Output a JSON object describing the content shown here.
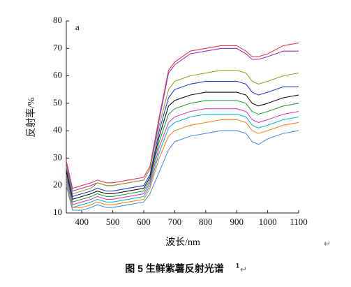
{
  "chart_data": {
    "type": "line",
    "panel_label": "a",
    "xlabel": "波长/nm",
    "ylabel": "反射率/%",
    "caption": "图 5  生鲜紫薯反射光谱",
    "caption_note": "1",
    "return_marks": [
      "↵",
      "↵"
    ],
    "xlim": [
      350,
      1100
    ],
    "ylim": [
      10,
      80
    ],
    "xticks": [
      400,
      500,
      600,
      700,
      800,
      900,
      1000,
      1100
    ],
    "yticks": [
      10,
      20,
      30,
      40,
      50,
      60,
      70,
      80
    ],
    "grid": false,
    "x": [
      350,
      370,
      400,
      430,
      450,
      480,
      500,
      550,
      600,
      620,
      650,
      680,
      700,
      750,
      800,
      850,
      900,
      930,
      950,
      970,
      1000,
      1050,
      1100
    ],
    "series": [
      {
        "color": "#e8394a",
        "values": [
          29,
          19,
          20,
          21,
          22,
          21,
          21,
          22,
          23,
          27,
          45,
          62,
          65,
          69,
          70,
          71,
          71,
          69,
          67,
          67,
          68,
          71,
          72
        ]
      },
      {
        "color": "#9b2fc9",
        "values": [
          28,
          18,
          19,
          20,
          21,
          20,
          20,
          21,
          22,
          26,
          44,
          61,
          64,
          68,
          69,
          70,
          70,
          68,
          66,
          66,
          67,
          69,
          69
        ]
      },
      {
        "color": "#9aa12c",
        "values": [
          27,
          17,
          18,
          19,
          21,
          20,
          20,
          21,
          22,
          26,
          42,
          55,
          58,
          60,
          61,
          62,
          62,
          61,
          58,
          57,
          58,
          60,
          61
        ]
      },
      {
        "color": "#1f3fd6",
        "values": [
          26,
          16,
          17,
          18,
          19,
          18,
          18,
          19,
          20,
          24,
          40,
          52,
          55,
          57,
          58,
          58,
          58,
          57,
          54,
          53,
          54,
          56,
          56
        ]
      },
      {
        "color": "#111111",
        "values": [
          25,
          15,
          16,
          17,
          18,
          17,
          17,
          18,
          19,
          23,
          38,
          49,
          51,
          53,
          54,
          54,
          54,
          53,
          50,
          49,
          50,
          52,
          53
        ]
      },
      {
        "color": "#22a83a",
        "values": [
          24,
          14,
          15,
          16,
          17,
          16,
          16,
          17,
          18,
          22,
          36,
          46,
          48,
          50,
          51,
          51,
          51,
          50,
          47,
          46,
          47,
          49,
          50
        ]
      },
      {
        "color": "#d63fc8",
        "values": [
          23,
          13,
          14,
          15,
          16,
          15,
          15,
          16,
          17,
          21,
          34,
          43,
          45,
          47,
          48,
          48,
          48,
          47,
          44,
          43,
          44,
          46,
          47
        ]
      },
      {
        "color": "#19b7c9",
        "values": [
          22,
          12,
          13,
          14,
          15,
          14,
          14,
          15,
          16,
          20,
          32,
          41,
          43,
          45,
          46,
          46,
          46,
          45,
          42,
          41,
          42,
          44,
          45
        ]
      },
      {
        "color": "#f08a1c",
        "values": [
          21,
          12,
          12,
          13,
          14,
          13,
          13,
          14,
          15,
          19,
          30,
          38,
          40,
          42,
          43,
          44,
          44,
          43,
          40,
          39,
          40,
          42,
          43
        ]
      },
      {
        "color": "#4f8fe8",
        "values": [
          20,
          11,
          11,
          12,
          13,
          12,
          12,
          13,
          14,
          17,
          25,
          33,
          36,
          38,
          39,
          40,
          40,
          39,
          36,
          35,
          37,
          39,
          40
        ]
      }
    ]
  }
}
